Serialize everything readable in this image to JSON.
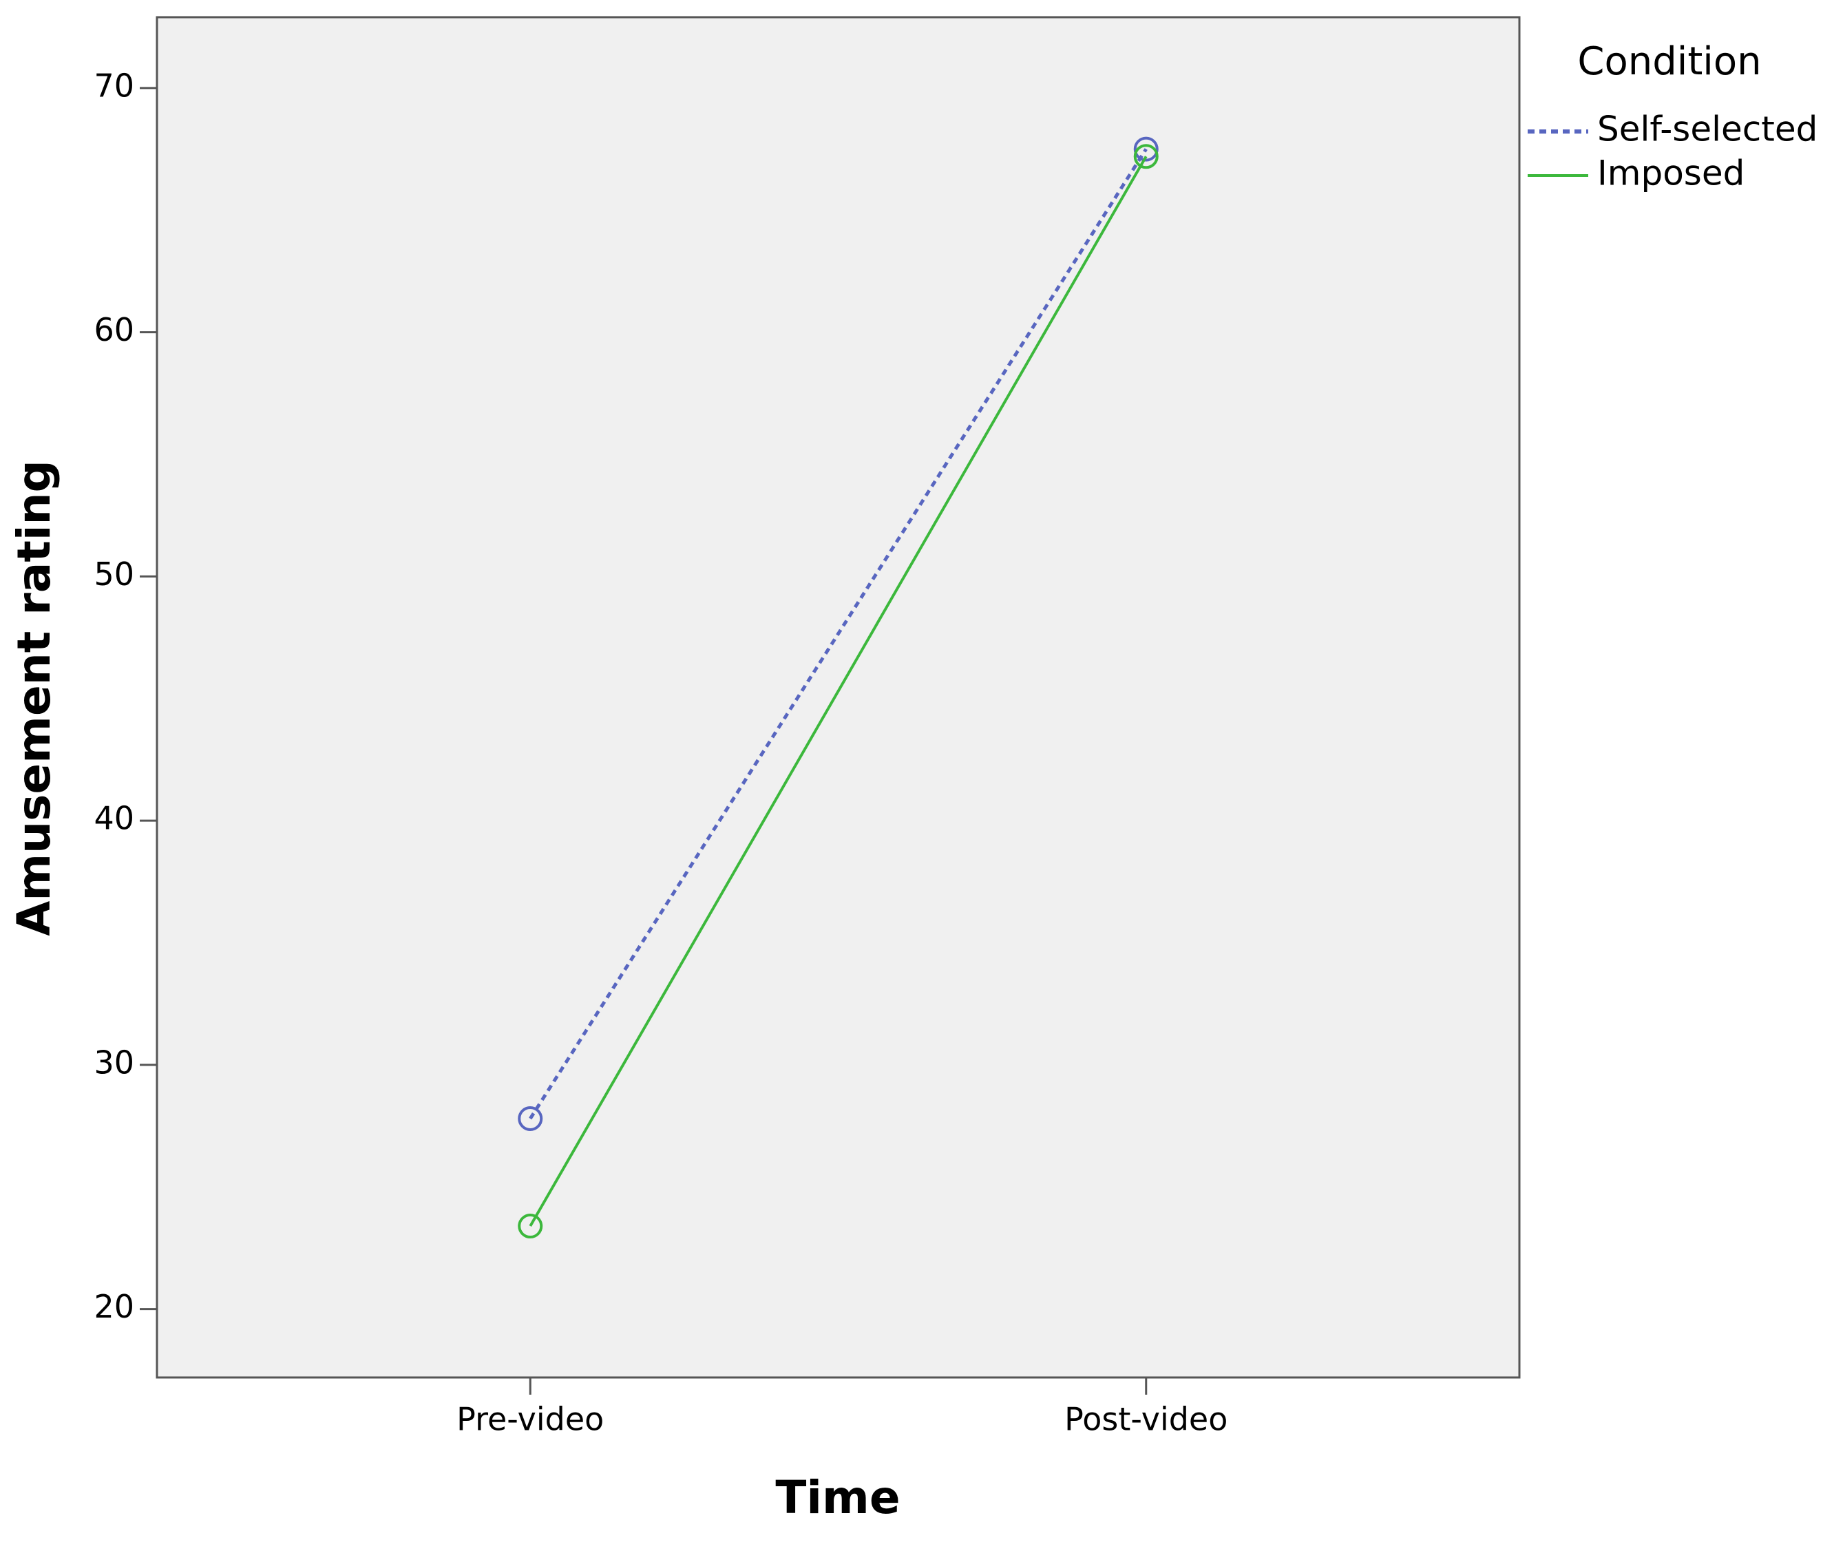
{
  "chart_data": {
    "type": "line",
    "x_label": "Time",
    "y_label": "Amusement rating",
    "categories": [
      "Pre-video",
      "Post-video"
    ],
    "legend_title": "Condition",
    "series": [
      {
        "name": "Self-selected",
        "color": "#5866c0",
        "dashed": true,
        "values": [
          27.8,
          67.5
        ]
      },
      {
        "name": "Imposed",
        "color": "#3cb83c",
        "dashed": false,
        "values": [
          23.4,
          67.2
        ]
      }
    ],
    "ylim": [
      17.2,
      72.9
    ],
    "yticks": [
      20,
      30,
      40,
      50,
      60,
      70
    ],
    "grid": false,
    "legend": "right"
  }
}
